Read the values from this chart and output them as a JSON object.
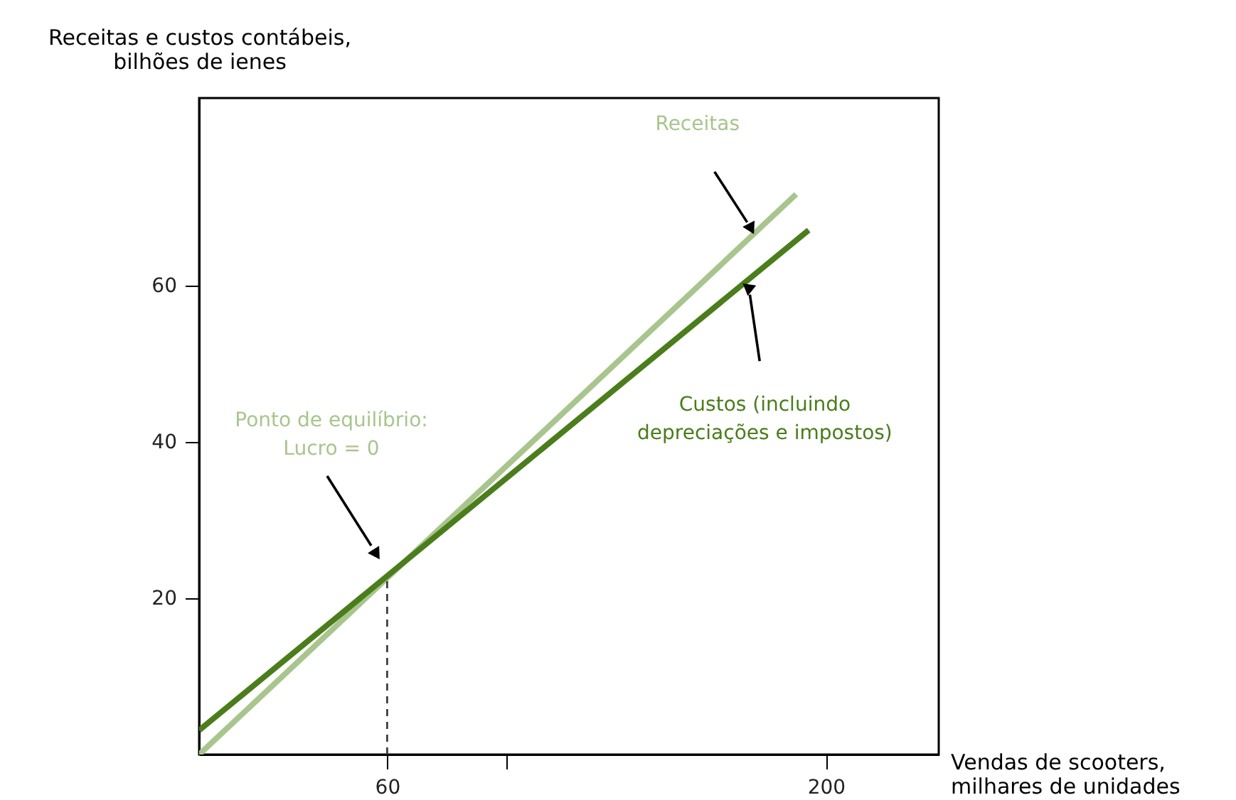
{
  "chart_data": {
    "type": "line",
    "xlabel": "Vendas de scooters,\nmilhares de unidades",
    "ylabel": "Receitas e custos contábeis,\nbilhões de ienes",
    "series": [
      {
        "name": "Receitas",
        "color": "#a9c58e",
        "x": [
          0,
          190.5
        ],
        "values": [
          0,
          71.7
        ]
      },
      {
        "name": "Custos (incluindo\ndepreciações e impostos)",
        "color": "#4b7d1c",
        "x": [
          0,
          194.5
        ],
        "values": [
          3.1,
          67.1
        ]
      }
    ],
    "xlim": [
      0,
      236
    ],
    "ylim": [
      0,
      84
    ],
    "xticks": [
      60,
      {
        "value": 98,
        "label": null
      },
      200
    ],
    "yticks": [
      20,
      40,
      60
    ],
    "ref_lines": [
      {
        "axis": "x",
        "value": 60,
        "line_style": "dashed",
        "color": "#333333"
      }
    ],
    "annotations": [
      "Ponto de equilíbrio:\nLucro = 0"
    ],
    "grid": false,
    "marker": "none",
    "line_style": "solid"
  }
}
